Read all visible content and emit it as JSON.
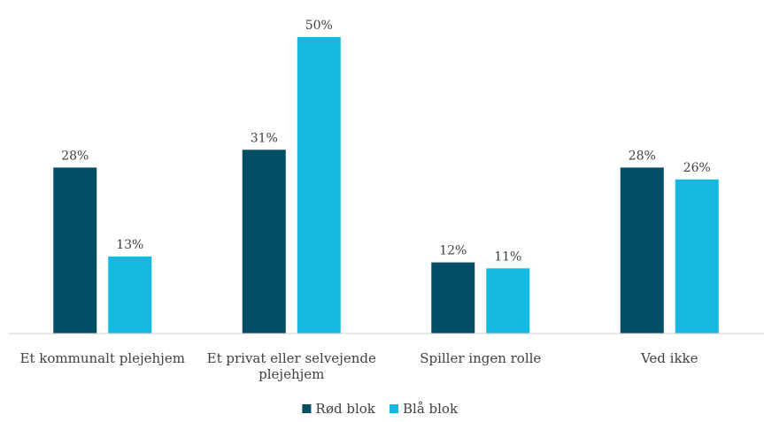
{
  "chart_data": {
    "type": "bar",
    "title": "",
    "xlabel": "",
    "ylabel": "",
    "categories": [
      [
        "Et kommunalt plejehjem"
      ],
      [
        "Et privat eller selvejende",
        "plejehjem"
      ],
      [
        "Spiller ingen rolle"
      ],
      [
        "Ved ikke"
      ]
    ],
    "series": [
      {
        "name": "Rød blok",
        "color": "#024E66",
        "values": [
          28,
          31,
          12,
          28
        ],
        "labels": [
          "28%",
          "31%",
          "12%",
          "28%"
        ]
      },
      {
        "name": "Blå blok",
        "color": "#14B9E2",
        "values": [
          13,
          50,
          11,
          26
        ],
        "labels": [
          "13%",
          "50%",
          "11%",
          "26%"
        ]
      }
    ],
    "ylim": [
      0,
      50
    ],
    "grid": false,
    "legend_position": "bottom"
  }
}
